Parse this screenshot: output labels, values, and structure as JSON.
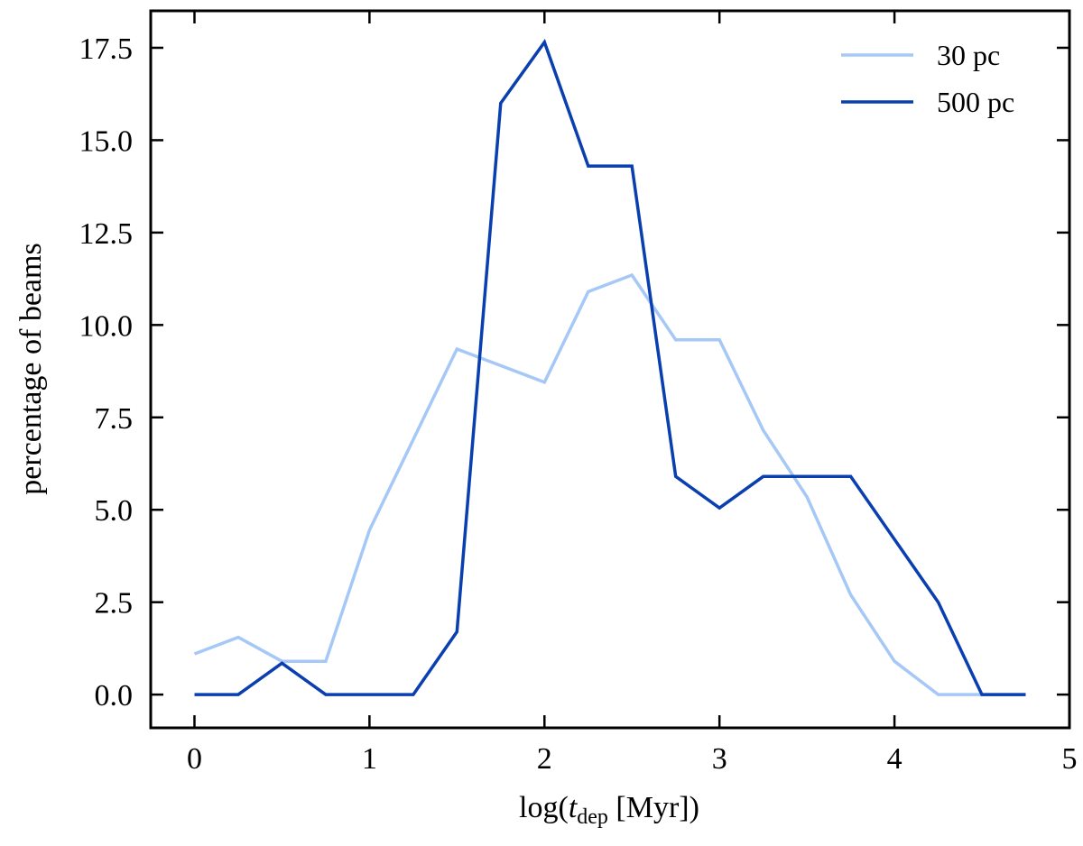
{
  "chart_data": {
    "type": "line",
    "xlabel": {
      "prefix": "log(",
      "var": "t",
      "sub": "dep",
      "suffix": " [Myr])"
    },
    "ylabel": "percentage of beams",
    "xlim": [
      -0.25,
      5
    ],
    "ylim": [
      -0.9,
      18.5
    ],
    "xticks": [
      0,
      1,
      2,
      3,
      4,
      5
    ],
    "xtick_labels": [
      "0",
      "1",
      "2",
      "3",
      "4",
      "5"
    ],
    "yticks": [
      0.0,
      2.5,
      5.0,
      7.5,
      10.0,
      12.5,
      15.0,
      17.5
    ],
    "ytick_labels": [
      "0.0",
      "2.5",
      "5.0",
      "7.5",
      "10.0",
      "12.5",
      "15.0",
      "17.5"
    ],
    "grid": false,
    "legend_position": "top-right",
    "x": [
      0,
      0.25,
      0.5,
      0.75,
      1.0,
      1.25,
      1.5,
      1.75,
      2.0,
      2.25,
      2.5,
      2.75,
      3.0,
      3.25,
      3.5,
      3.75,
      4.0,
      4.25,
      4.5,
      4.75
    ],
    "series": [
      {
        "name": "30 pc",
        "color": "#a6c8f7",
        "values": [
          1.1,
          1.55,
          0.9,
          0.9,
          4.45,
          6.9,
          9.35,
          8.9,
          8.45,
          10.9,
          11.35,
          9.6,
          9.6,
          7.15,
          5.35,
          2.7,
          0.9,
          0.0,
          0.0,
          0.0
        ]
      },
      {
        "name": "500 pc",
        "color": "#0a3fb0",
        "values": [
          0.0,
          0.0,
          0.85,
          0.0,
          0.0,
          0.0,
          1.7,
          16.0,
          17.65,
          14.3,
          14.3,
          5.9,
          5.05,
          5.9,
          5.9,
          5.9,
          4.2,
          2.5,
          0.0,
          0.0
        ]
      }
    ]
  }
}
